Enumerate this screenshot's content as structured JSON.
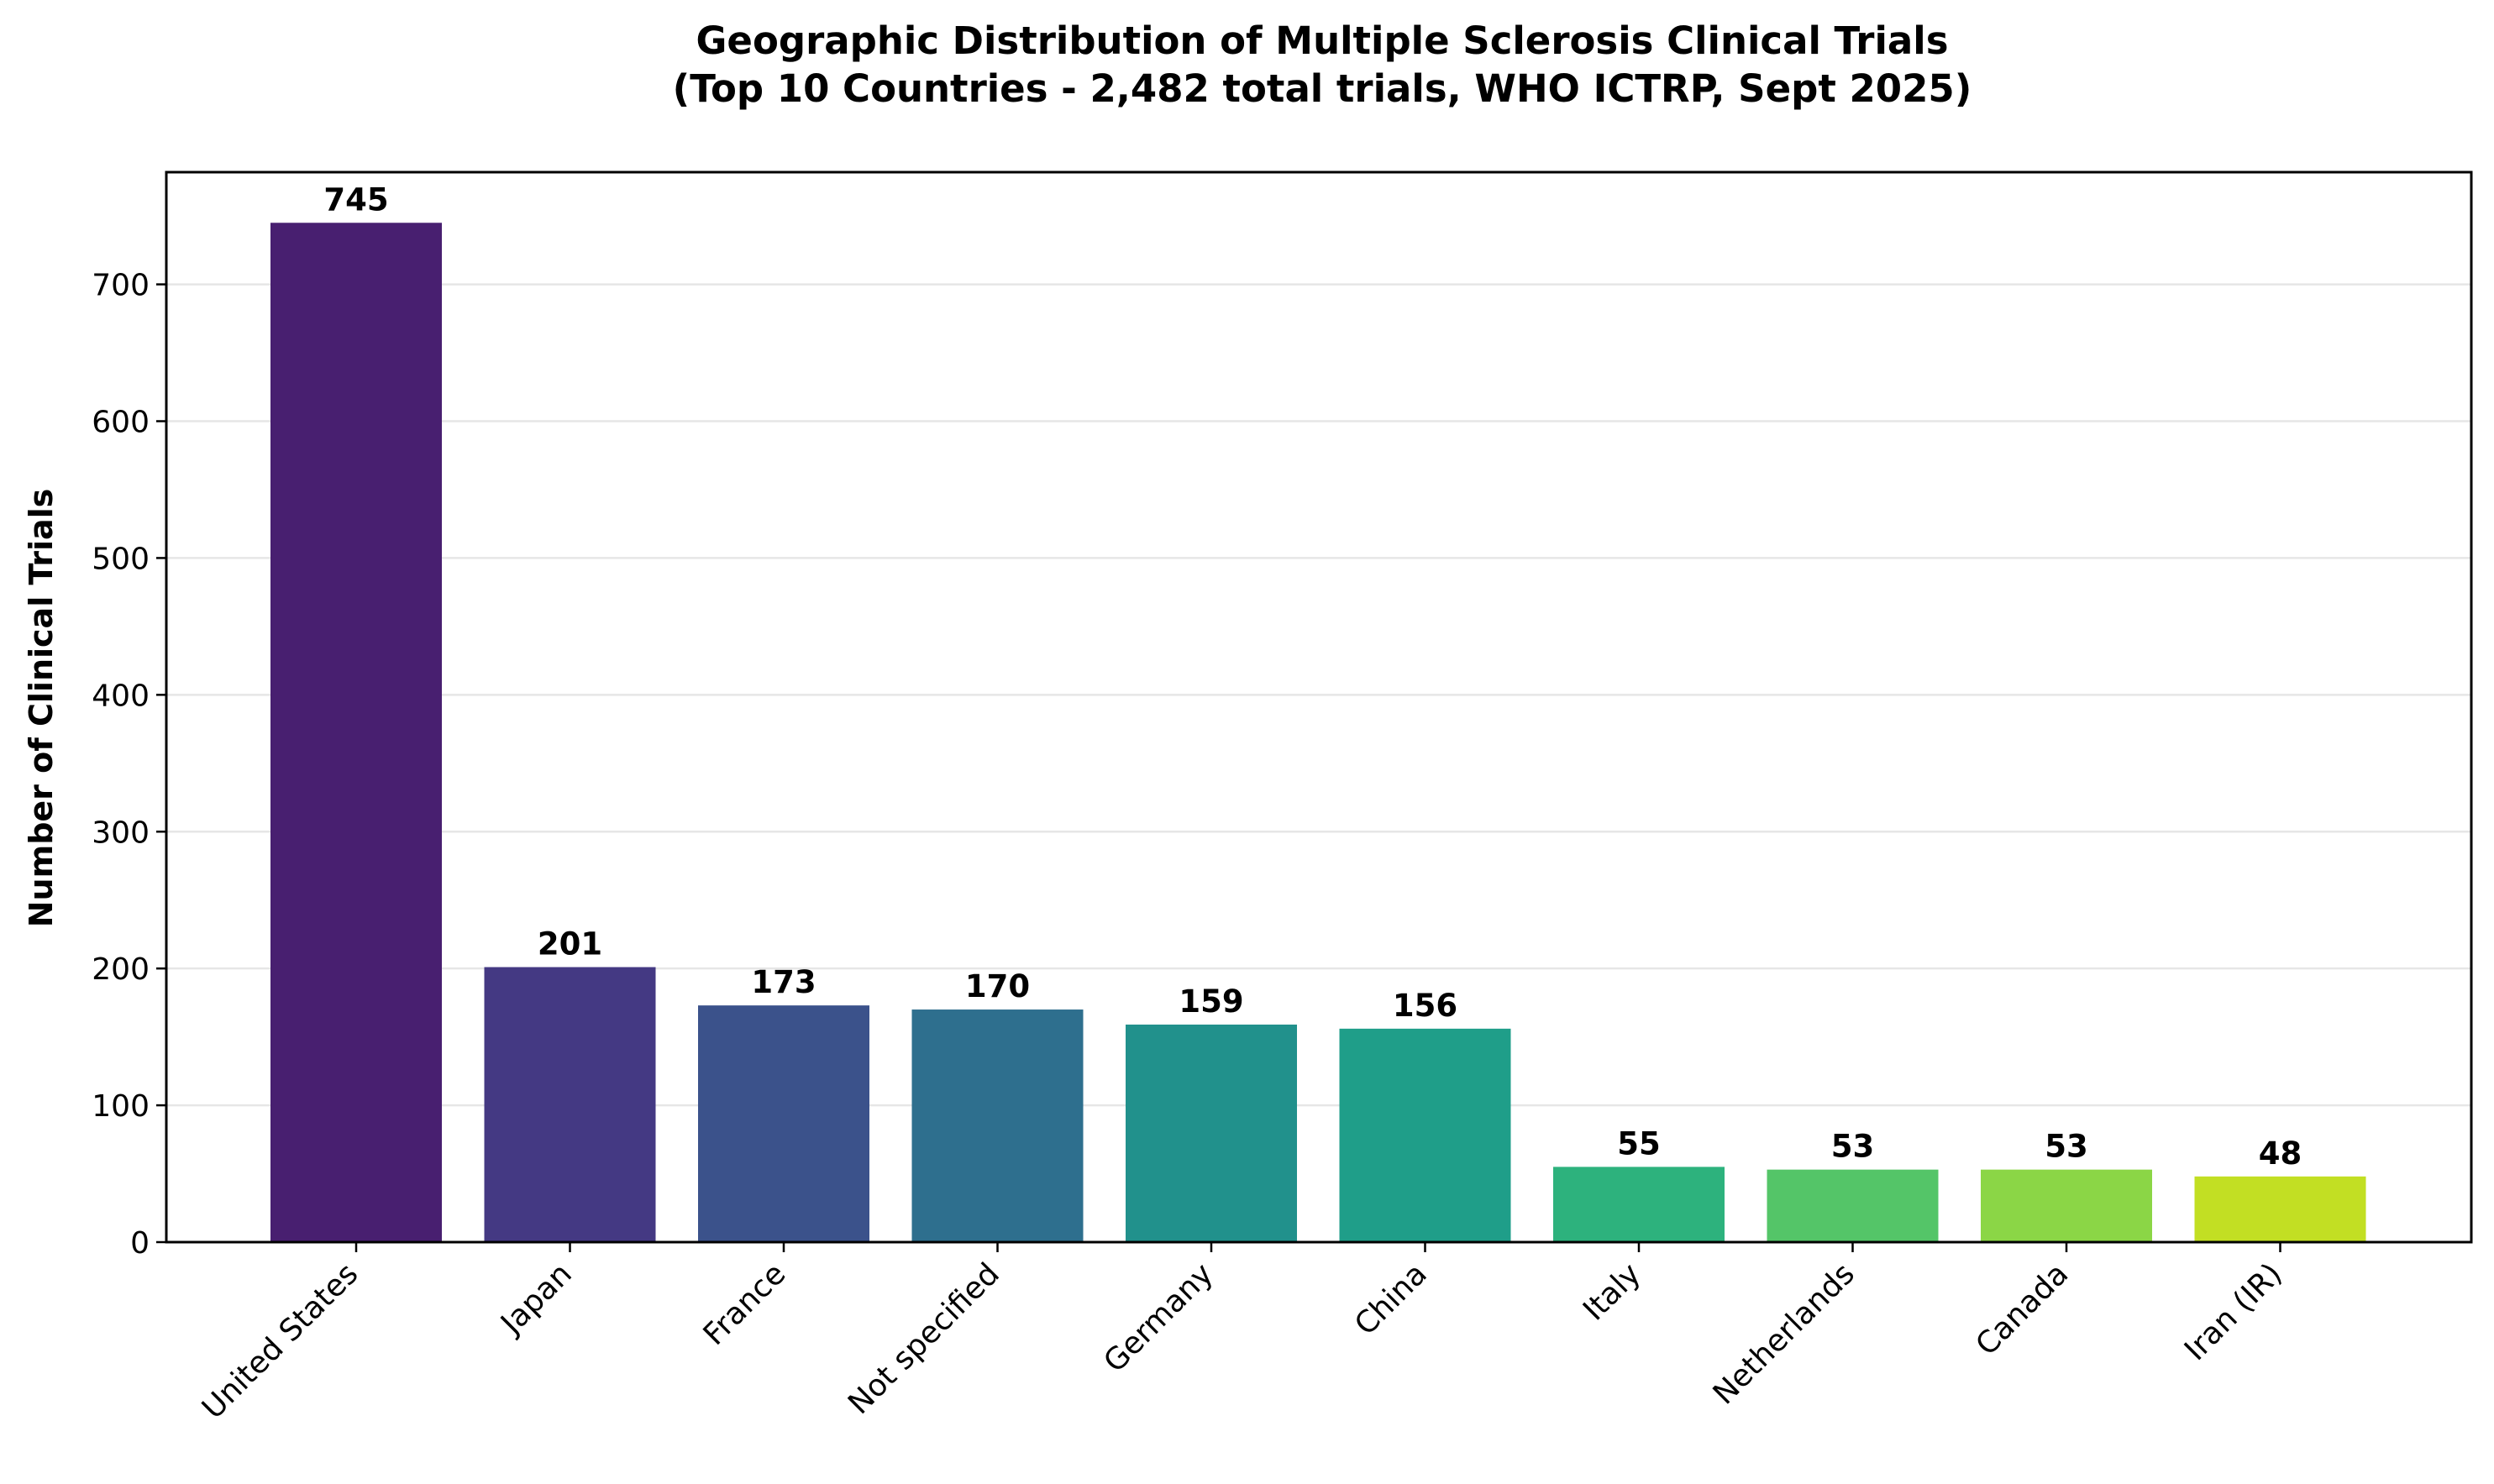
{
  "chart_data": {
    "type": "bar",
    "title_line1": "Geographic Distribution of Multiple Sclerosis Clinical Trials",
    "title_line2": "(Top 10 Countries - 2,482 total trials, WHO ICTRP, Sept 2025)",
    "xlabel": "",
    "ylabel": "Number of Clinical Trials",
    "ylim": [
      0,
      782
    ],
    "yticks": [
      0,
      100,
      200,
      300,
      400,
      500,
      600,
      700
    ],
    "grid": "horizontal",
    "categories": [
      "United States",
      "Japan",
      "France",
      "Not specified",
      "Germany",
      "China",
      "Italy",
      "Netherlands",
      "Canada",
      "Iran (IR)"
    ],
    "values": [
      745,
      201,
      173,
      170,
      159,
      156,
      55,
      53,
      53,
      48
    ],
    "colors": [
      "#481f70",
      "#443983",
      "#3b528b",
      "#2e6f8e",
      "#21918c",
      "#1f9e89",
      "#2db27d",
      "#54c568",
      "#8bd646",
      "#c2df23"
    ]
  }
}
